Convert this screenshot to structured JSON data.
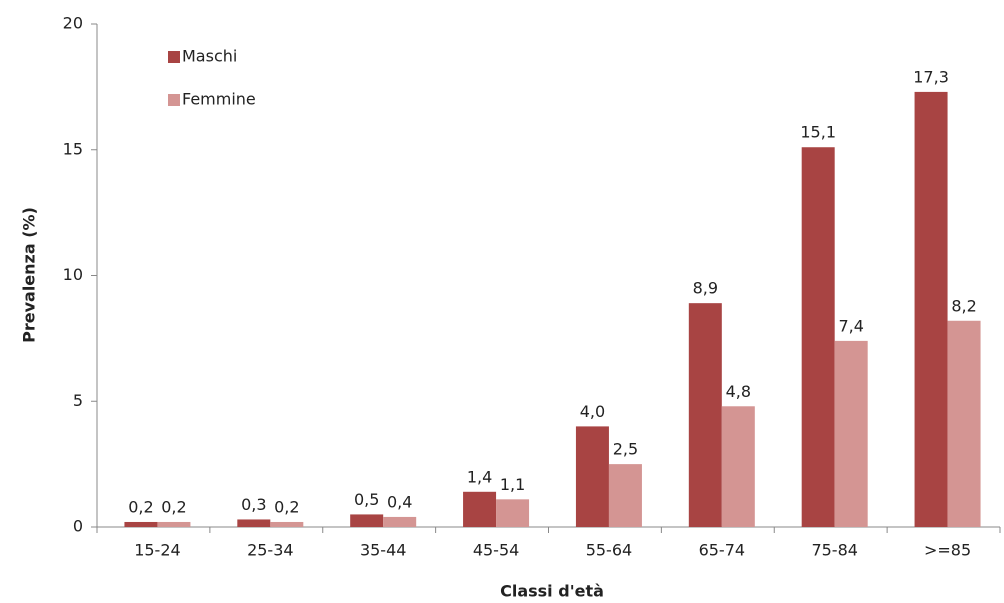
{
  "chart_data": {
    "type": "bar",
    "x_label": "Classi d'età",
    "y_label": "Prevalenza (%)",
    "categories": [
      "15-24",
      "25-34",
      "35-44",
      "45-54",
      "55-64",
      "65-74",
      "75-84",
      ">=85"
    ],
    "series": [
      {
        "name": "Maschi",
        "color": "#a84443",
        "values": [
          0.2,
          0.3,
          0.5,
          1.4,
          4.0,
          8.9,
          15.1,
          17.3
        ],
        "value_labels": [
          "0,2",
          "0,3",
          "0,5",
          "1,4",
          "4,0",
          "8,9",
          "15,1",
          "17,3"
        ]
      },
      {
        "name": "Femmine",
        "color": "#d49593",
        "values": [
          0.2,
          0.2,
          0.4,
          1.1,
          2.5,
          4.8,
          7.4,
          8.2
        ],
        "value_labels": [
          "0,2",
          "0,2",
          "0,4",
          "1,1",
          "2,5",
          "4,8",
          "7,4",
          "8,2"
        ]
      }
    ],
    "ylim": [
      0,
      20
    ],
    "yticks": [
      0,
      5,
      10,
      15,
      20
    ],
    "legend": "top-left"
  }
}
